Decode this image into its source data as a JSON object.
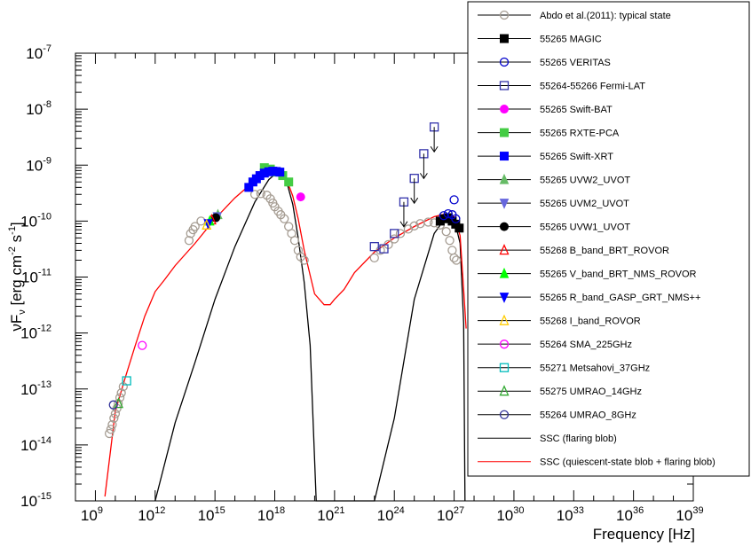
{
  "chart_data": {
    "type": "scatter",
    "title": "",
    "xlabel": "Frequency [Hz]",
    "ylabel": "νF",
    "ylabel_sub": "ν",
    "ylabel_units": "[erg cm",
    "ylabel_exp1": "-2",
    "ylabel_units2": " s",
    "ylabel_exp2": "-1",
    "ylabel_close": "]",
    "x_scale": "log",
    "y_scale": "log",
    "xlim": [
      100000000.0,
      1e+39
    ],
    "ylim": [
      1e-15,
      1e-07
    ],
    "grid": false,
    "legend_placement": "top-right",
    "x_ticks": [
      {
        "base": "10",
        "exp": "9",
        "value": 1000000000.0
      },
      {
        "base": "10",
        "exp": "12",
        "value": 1000000000000.0
      },
      {
        "base": "10",
        "exp": "15",
        "value": 1000000000000000.0
      },
      {
        "base": "10",
        "exp": "18",
        "value": 1e+18
      },
      {
        "base": "10",
        "exp": "21",
        "value": 1e+21
      },
      {
        "base": "10",
        "exp": "24",
        "value": 1e+24
      },
      {
        "base": "10",
        "exp": "27",
        "value": 1e+27
      },
      {
        "base": "10",
        "exp": "30",
        "value": 1e+30
      },
      {
        "base": "10",
        "exp": "33",
        "value": 1e+33
      },
      {
        "base": "10",
        "exp": "36",
        "value": 1e+36
      },
      {
        "base": "10",
        "exp": "39",
        "value": 1e+39
      }
    ],
    "y_ticks": [
      {
        "base": "10",
        "exp": "-15",
        "value": 1e-15
      },
      {
        "base": "10",
        "exp": "-14",
        "value": 1e-14
      },
      {
        "base": "10",
        "exp": "-13",
        "value": 1e-13
      },
      {
        "base": "10",
        "exp": "-12",
        "value": 1e-12
      },
      {
        "base": "10",
        "exp": "-11",
        "value": 1e-11
      },
      {
        "base": "10",
        "exp": "-10",
        "value": 1e-10
      },
      {
        "base": "10",
        "exp": "-9",
        "value": 1e-09
      },
      {
        "base": "10",
        "exp": "-8",
        "value": 1e-08
      },
      {
        "base": "10",
        "exp": "-7",
        "value": 1e-07
      }
    ],
    "series": [
      {
        "name": "Abdo et al.(2011): typical state",
        "marker": "open-circle",
        "color": "#a59c92",
        "line": true,
        "points": [
          [
            5000000000.0,
            1.6e-14
          ],
          [
            6000000000.0,
            1.9e-14
          ],
          [
            7000000000.0,
            2.3e-14
          ],
          [
            8500000000.0,
            3e-14
          ],
          [
            10000000000.0,
            3.6e-14
          ],
          [
            12000000000.0,
            4.5e-14
          ],
          [
            14000000000.0,
            5.5e-14
          ],
          [
            17000000000.0,
            7e-14
          ],
          [
            20000000000.0,
            8.5e-14
          ],
          [
            25000000000.0,
            1.1e-13
          ],
          [
            50000000000000.0,
            4.5e-11
          ],
          [
            60000000000000.0,
            6e-11
          ],
          [
            80000000000000.0,
            7e-11
          ],
          [
            100000000000000.0,
            8e-11
          ],
          [
            200000000000000.0,
            1e-10
          ],
          [
            1e+17,
            3e-10
          ],
          [
            2e+17,
            3.1e-10
          ],
          [
            4e+17,
            2.9e-10
          ],
          [
            6e+17,
            2.5e-10
          ],
          [
            8e+17,
            2.1e-10
          ],
          [
            1e+18,
            1.8e-10
          ],
          [
            1.5e+18,
            1.5e-10
          ],
          [
            2e+18,
            1.3e-10
          ],
          [
            3e+18,
            1.1e-10
          ],
          [
            5e+18,
            8e-11
          ],
          [
            7e+18,
            6e-11
          ],
          [
            1e+19,
            4.5e-11
          ],
          [
            1.5e+19,
            3e-11
          ],
          [
            2e+19,
            2.3e-11
          ],
          [
            3e+19,
            2e-11
          ],
          [
            1e+23,
            2.2e-11
          ],
          [
            2e+23,
            3e-11
          ],
          [
            5e+23,
            3.8e-11
          ],
          [
            1e+24,
            4.8e-11
          ],
          [
            2e+24,
            6e-11
          ],
          [
            5e+24,
            7.2e-11
          ],
          [
            1e+25,
            8.2e-11
          ],
          [
            2e+25,
            9e-11
          ],
          [
            5e+25,
            9.6e-11
          ],
          [
            1e+26,
            9.3e-11
          ],
          [
            2e+26,
            8.5e-11
          ],
          [
            4e+26,
            6.5e-11
          ],
          [
            6e+26,
            4.5e-11
          ],
          [
            8e+26,
            3e-11
          ],
          [
            1e+27,
            2.2e-11
          ],
          [
            1.3e+27,
            2e-11
          ]
        ]
      },
      {
        "name": "55265 MAGIC",
        "marker": "filled-square",
        "color": "#000000",
        "points": [
          [
            2e+26,
            1e-10
          ],
          [
            3e+26,
            1.1e-10
          ],
          [
            5e+26,
            1.15e-10
          ],
          [
            8e+26,
            1e-10
          ],
          [
            1.2e+27,
            8.8e-11
          ],
          [
            1.8e+27,
            7.5e-11
          ]
        ]
      },
      {
        "name": "55265 VERITAS",
        "marker": "open-circle",
        "color": "#0000cc",
        "points": [
          [
            3e+26,
            1.25e-10
          ],
          [
            5e+26,
            1.35e-10
          ],
          [
            8e+26,
            1.3e-10
          ],
          [
            1.2e+27,
            1.1e-10
          ],
          [
            1e+27,
            2.4e-10
          ]
        ]
      },
      {
        "name": "55264-55266 Fermi-LAT",
        "marker": "open-square",
        "color": "#3333aa",
        "points": [
          [
            1e+23,
            3.5e-11
          ],
          [
            3e+23,
            3.2e-11
          ],
          [
            1e+24,
            6e-11
          ],
          [
            3e+24,
            2.2e-10
          ],
          [
            1e+25,
            5.8e-10
          ],
          [
            3e+25,
            1.6e-09
          ],
          [
            1e+26,
            4.8e-09
          ]
        ]
      },
      {
        "name": "55265 Swift-BAT",
        "marker": "filled-circle",
        "color": "#ff00ff",
        "points": [
          [
            2e+19,
            2.7e-10
          ]
        ]
      },
      {
        "name": "55265 RXTE-PCA",
        "marker": "filled-square",
        "color": "#44cc44",
        "points": [
          [
            3e+17,
            9e-10
          ],
          [
            6e+17,
            8.5e-10
          ],
          [
            1.2e+18,
            7.5e-10
          ],
          [
            2.5e+18,
            6.5e-10
          ],
          [
            5e+18,
            5e-10
          ]
        ]
      },
      {
        "name": "55265 Swift-XRT",
        "marker": "filled-square",
        "color": "#0000ff",
        "points": [
          [
            5e+16,
            4e-10
          ],
          [
            8e+16,
            5e-10
          ],
          [
            1.2e+17,
            5.7e-10
          ],
          [
            1.8e+17,
            6.5e-10
          ],
          [
            3e+17,
            7.2e-10
          ],
          [
            5e+17,
            7.6e-10
          ],
          [
            8e+17,
            7.8e-10
          ],
          [
            1.2e+18,
            7.7e-10
          ],
          [
            1.8e+18,
            7.5e-10
          ]
        ]
      },
      {
        "name": "55265 UVW2_UVOT",
        "marker": "filled-triangle-up",
        "color": "#66bb66",
        "points": [
          [
            1400000000000000.0,
            1.3e-10
          ]
        ]
      },
      {
        "name": "55265 UVM2_UVOT",
        "marker": "filled-triangle-down",
        "color": "#6666dd",
        "points": [
          [
            1300000000000000.0,
            1.2e-10
          ]
        ]
      },
      {
        "name": "55265 UVW1_UVOT",
        "marker": "filled-circle",
        "color": "#000000",
        "points": [
          [
            1100000000000000.0,
            1.15e-10
          ]
        ]
      },
      {
        "name": "55268 B_band_BRT_ROVOR",
        "marker": "open-triangle-up",
        "color": "#ff0000",
        "points": [
          [
            680000000000000.0,
            1.05e-10
          ]
        ]
      },
      {
        "name": "55265 V_band_BRT_NMS_ROVOR",
        "marker": "filled-triangle-up",
        "color": "#00ff00",
        "points": [
          [
            550000000000000.0,
            1e-10
          ]
        ]
      },
      {
        "name": "55265 R_band_GASP_GRT_NMS++",
        "marker": "filled-triangle-down",
        "color": "#0000ff",
        "points": [
          [
            460000000000000.0,
            9e-11
          ]
        ]
      },
      {
        "name": "55268 I_band_ROVOR",
        "marker": "open-triangle-up",
        "color": "#ffcc00",
        "points": [
          [
            380000000000000.0,
            8.5e-11
          ]
        ]
      },
      {
        "name": "55264 SMA_225GHz",
        "marker": "open-circle",
        "color": "#ff00ff",
        "points": [
          [
            225000000000.0,
            6e-13
          ]
        ]
      },
      {
        "name": "55271 Metsahovi_37GHz",
        "marker": "open-square",
        "color": "#00bbbb",
        "points": [
          [
            37000000000.0,
            1.4e-13
          ]
        ]
      },
      {
        "name": "55275 UMRAO_14GHz",
        "marker": "open-triangle-up",
        "color": "#33aa33",
        "points": [
          [
            14500000000.0,
            5.5e-14
          ]
        ]
      },
      {
        "name": "55264 UMRAO_8GHz",
        "marker": "open-circle",
        "color": "#333399",
        "points": [
          [
            8000000000.0,
            5.2e-14
          ]
        ]
      },
      {
        "name": "SSC (flaring blob)",
        "marker": "line",
        "color": "#000000",
        "points": [
          [
            1000000000000.0,
            1e-15
          ],
          [
            10000000000000.0,
            2.5e-14
          ],
          [
            100000000000000.0,
            3e-13
          ],
          [
            1000000000000000.0,
            4e-12
          ],
          [
            1e+16,
            3.5e-11
          ],
          [
            1e+17,
            2.2e-10
          ],
          [
            5e+17,
            5.5e-10
          ],
          [
            1e+18,
            6.8e-10
          ],
          [
            2e+18,
            7e-10
          ],
          [
            4e+18,
            5e-10
          ],
          [
            8e+18,
            2e-10
          ],
          [
            1.5e+19,
            5e-11
          ],
          [
            3e+19,
            8e-12
          ],
          [
            6e+19,
            6e-13
          ],
          [
            1.2e+20,
            1e-15
          ],
          [
            1e+23,
            1e-15
          ],
          [
            1e+24,
            3e-14
          ],
          [
            1e+25,
            4e-12
          ],
          [
            1e+26,
            6e-11
          ],
          [
            4e+26,
            1.2e-10
          ],
          [
            1e+27,
            1.1e-10
          ],
          [
            2e+27,
            4e-11
          ],
          [
            3e+27,
            1.5e-12
          ],
          [
            3.5e+27,
            1e-15
          ]
        ]
      },
      {
        "name": "SSC (quiescent-state blob + flaring blob)",
        "marker": "line",
        "color": "#ff0000",
        "points": [
          [
            3000000000.0,
            1.2e-15
          ],
          [
            10000000000.0,
            4e-14
          ],
          [
            30000000000.0,
            1.5e-13
          ],
          [
            100000000000.0,
            6e-13
          ],
          [
            300000000000.0,
            2e-12
          ],
          [
            1000000000000.0,
            5.5e-12
          ],
          [
            3000000000000.0,
            9e-12
          ],
          [
            10000000000000.0,
            1.6e-11
          ],
          [
            100000000000000.0,
            4e-11
          ],
          [
            1000000000000000.0,
            1.1e-10
          ],
          [
            1e+16,
            2.6e-10
          ],
          [
            1e+17,
            5.3e-10
          ],
          [
            5e+17,
            7.8e-10
          ],
          [
            1e+18,
            7.9e-10
          ],
          [
            2e+18,
            7.3e-10
          ],
          [
            4e+18,
            5.5e-10
          ],
          [
            8e+18,
            2.8e-10
          ],
          [
            1.5e+19,
            1.1e-10
          ],
          [
            3e+19,
            3e-11
          ],
          [
            1e+20,
            5e-12
          ],
          [
            3e+20,
            3.2e-12
          ],
          [
            6e+20,
            3.2e-12
          ],
          [
            1e+21,
            4e-12
          ],
          [
            3e+21,
            6e-12
          ],
          [
            1e+22,
            1.2e-11
          ],
          [
            1e+23,
            2.8e-11
          ],
          [
            1e+24,
            5e-11
          ],
          [
            1e+25,
            8e-11
          ],
          [
            1e+26,
            1.2e-10
          ],
          [
            4e+26,
            1.35e-10
          ],
          [
            1e+27,
            1.2e-10
          ],
          [
            2e+27,
            5.5e-11
          ],
          [
            3e+27,
            6e-12
          ],
          [
            4e+27,
            1.2e-12
          ]
        ]
      }
    ]
  }
}
